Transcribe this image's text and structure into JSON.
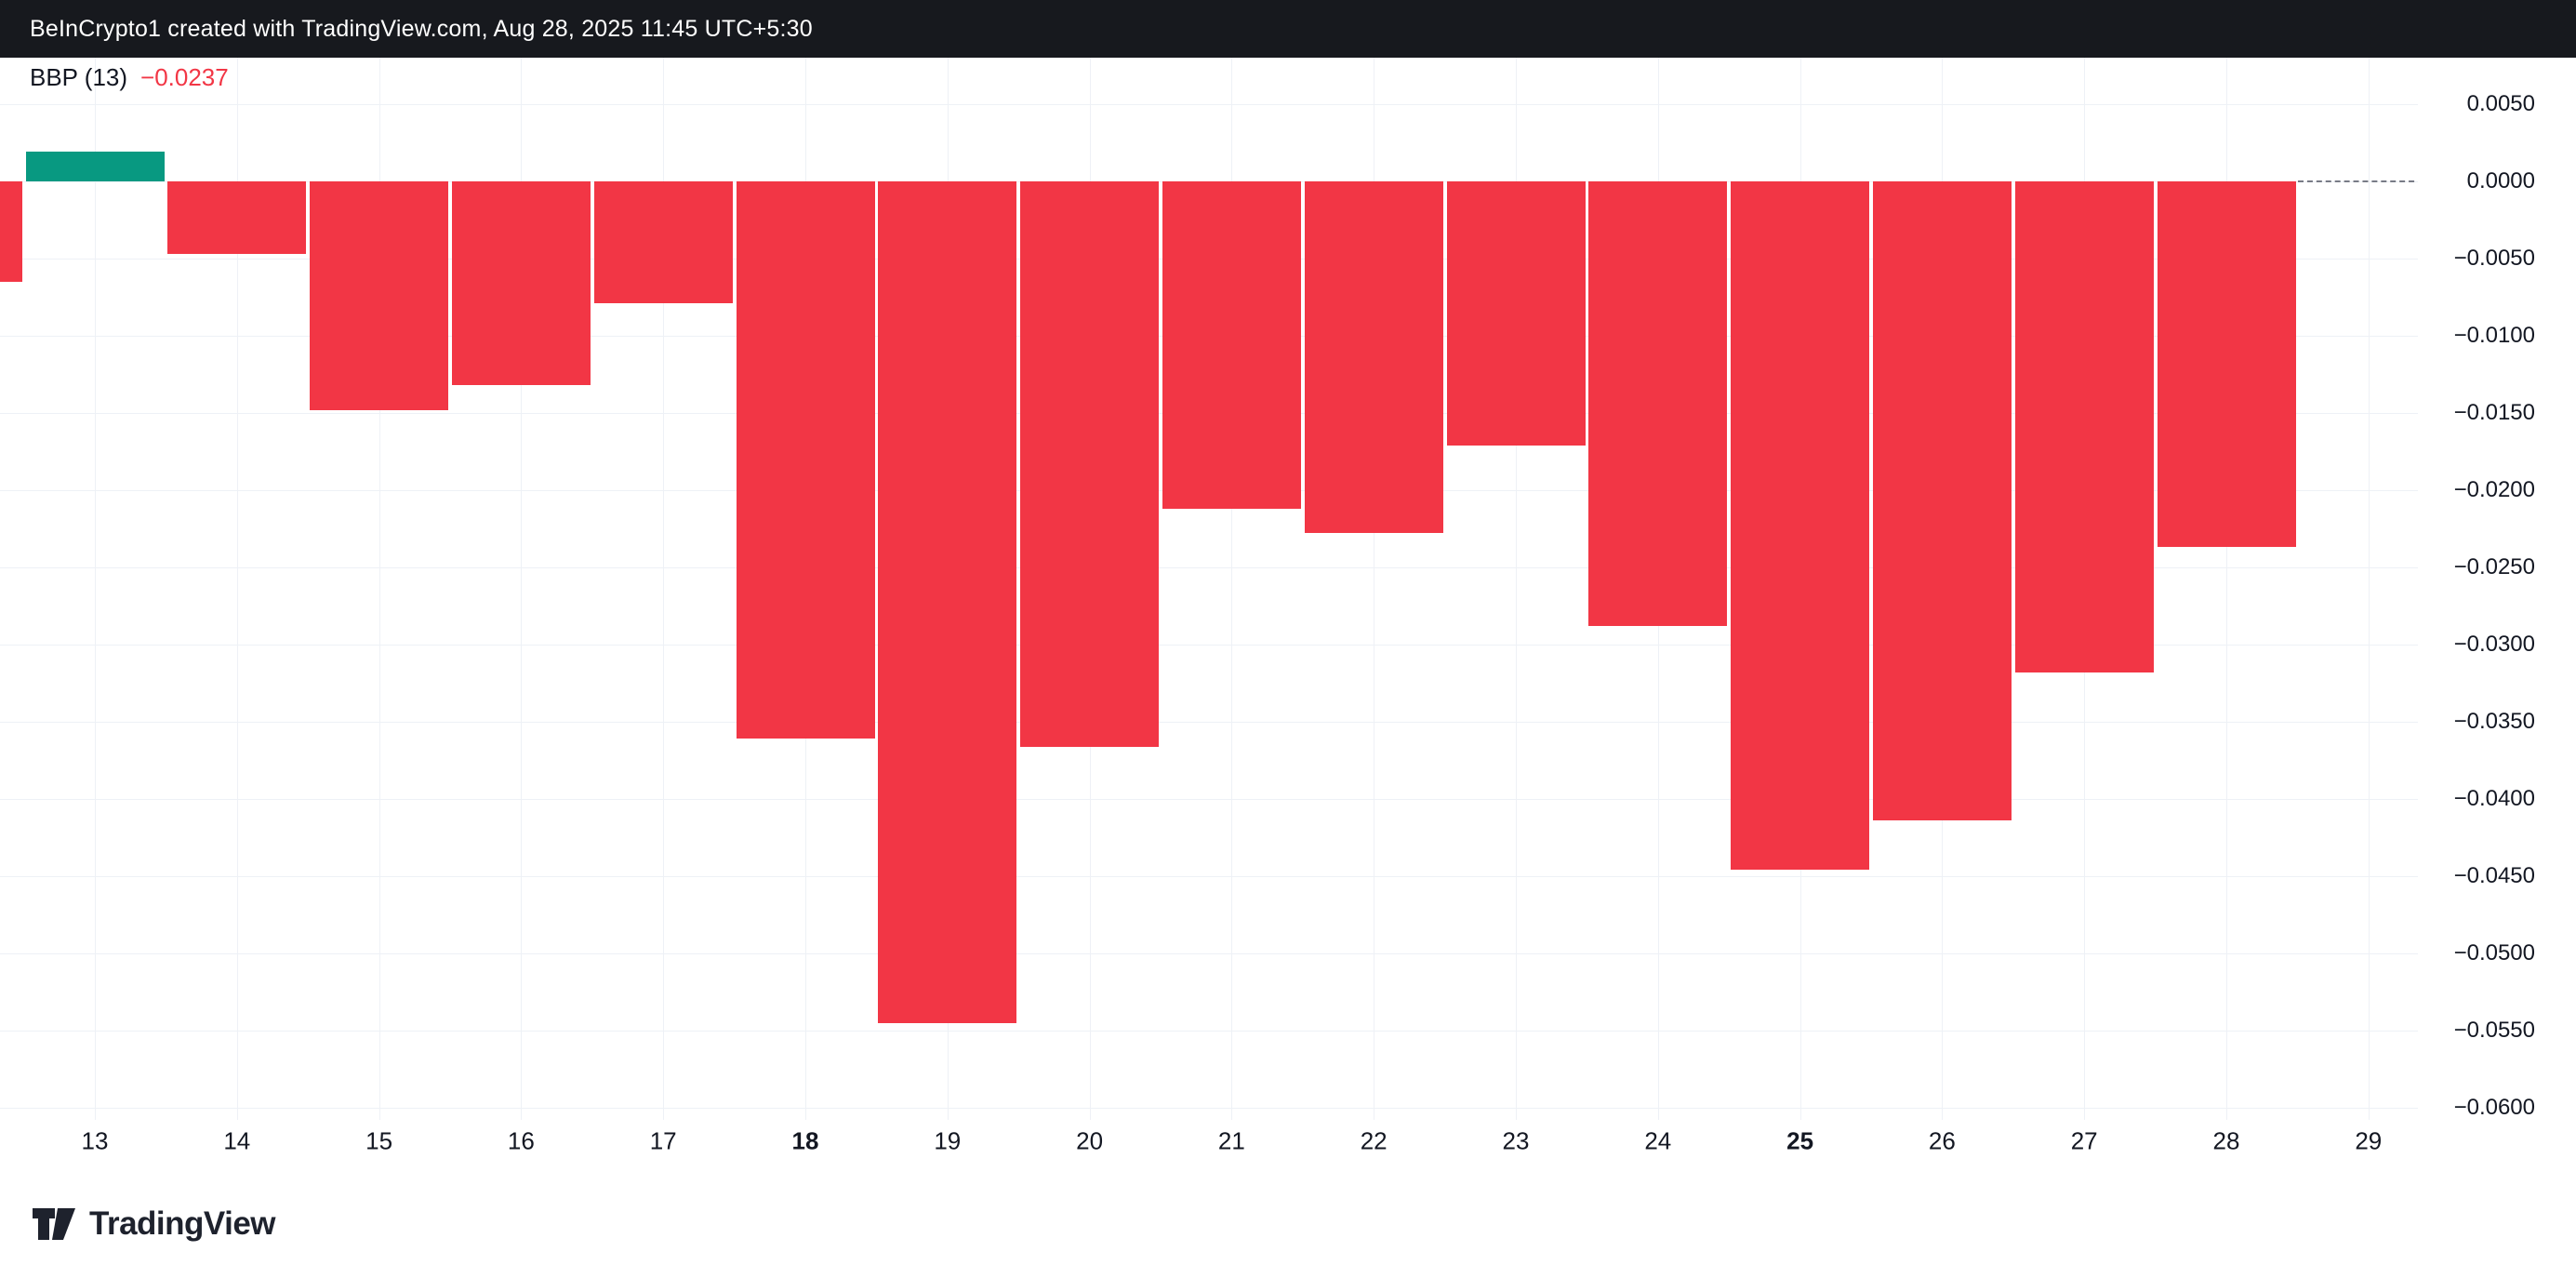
{
  "header": {
    "title": "BeInCrypto1 created with TradingView.com, Aug 28, 2025 11:45 UTC+5:30"
  },
  "legend": {
    "indicator": "BBP (13)",
    "value": "−0.0237"
  },
  "footer": {
    "brand": "TradingView"
  },
  "chart_data": {
    "type": "bar",
    "title": "BBP (13)",
    "last_value": -0.0237,
    "bars": {
      "days": [
        12,
        13,
        14,
        15,
        16,
        17,
        18,
        19,
        20,
        21,
        22,
        23,
        24,
        25,
        26,
        27,
        28
      ],
      "values": [
        -0.0065,
        0.0019,
        -0.0047,
        -0.0148,
        -0.0132,
        -0.0079,
        -0.0361,
        -0.0545,
        -0.0366,
        -0.0212,
        -0.0228,
        -0.0171,
        -0.0288,
        -0.0446,
        -0.0414,
        -0.0318,
        -0.0237
      ]
    },
    "x_label_days": [
      "13",
      "14",
      "15",
      "16",
      "17",
      "18",
      "19",
      "20",
      "21",
      "22",
      "23",
      "24",
      "25",
      "26",
      "27",
      "28",
      "29"
    ],
    "bold_x_labels": [
      "18",
      "25"
    ],
    "y_ticks": {
      "labels": [
        "0.0050",
        "0.0000",
        "−0.0050",
        "−0.0100",
        "−0.0150",
        "−0.0200",
        "−0.0250",
        "−0.0300",
        "−0.0350",
        "−0.0400",
        "−0.0450",
        "−0.0500",
        "−0.0550",
        "−0.0600"
      ],
      "values": [
        0.005,
        0,
        -0.005,
        -0.01,
        -0.015,
        -0.02,
        -0.025,
        -0.03,
        -0.035,
        -0.04,
        -0.045,
        -0.05,
        -0.055,
        -0.06
      ]
    },
    "ylim": [
      -0.0608,
      0.008
    ],
    "zero_line": {
      "value": 0,
      "style": "dashed"
    },
    "grid": true,
    "legend_position": "top-left",
    "colors": {
      "positive": "#089981",
      "negative": "#f23645",
      "grid": "#eef1f6",
      "dashed_line": "#787b86",
      "text": "#131722"
    }
  }
}
